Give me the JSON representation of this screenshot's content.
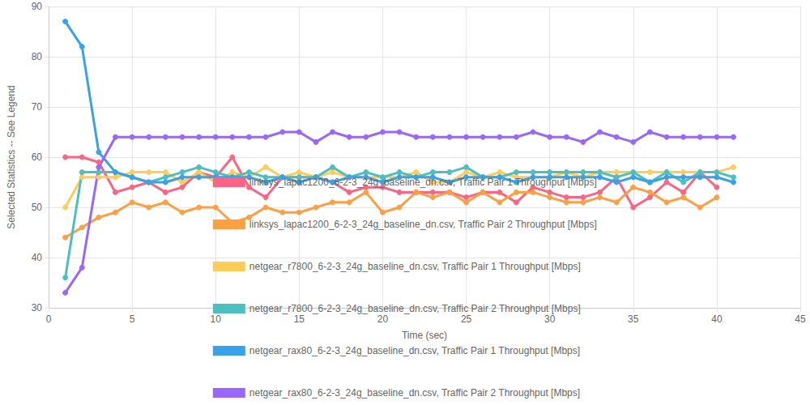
{
  "chart_data": {
    "type": "line",
    "x_label": "Time (sec)",
    "y_label": "Selected Statistics -- See Legend",
    "x": [
      1,
      2,
      3,
      4,
      5,
      6,
      7,
      8,
      9,
      10,
      11,
      12,
      13,
      14,
      15,
      16,
      17,
      18,
      19,
      20,
      21,
      22,
      23,
      24,
      25,
      26,
      27,
      28,
      29,
      30,
      31,
      32,
      33,
      34,
      35,
      36,
      37,
      38,
      39,
      40,
      41
    ],
    "xlim": [
      0,
      45
    ],
    "xticks": [
      0,
      5,
      10,
      15,
      20,
      25,
      30,
      35,
      40,
      45
    ],
    "ylim": [
      30,
      90
    ],
    "yticks": [
      30,
      40,
      50,
      60,
      70,
      80,
      90
    ],
    "grid": true,
    "legend": "bottom",
    "marker": "circle",
    "series": [
      {
        "name": "linksys_lapac1200_6-2-3_24g_baseline_dn.csv, Traffic Pair 1 Throughput [Mbps]",
        "color": "#ff6384",
        "values": [
          60,
          60,
          59,
          53,
          54,
          55,
          53,
          54,
          57,
          56,
          60,
          54,
          52,
          56,
          56,
          56,
          55,
          53,
          54,
          54,
          53,
          53,
          53,
          53,
          52,
          53,
          53,
          51,
          54,
          53,
          52,
          52,
          53,
          56,
          50,
          52,
          55,
          53,
          57,
          54,
          null
        ]
      },
      {
        "name": "linksys_lapac1200_6-2-3_24g_baseline_dn.csv, Traffic Pair 2 Throughput [Mbps]",
        "color": "#ff9f40",
        "values": [
          44,
          46,
          48,
          49,
          51,
          50,
          51,
          49,
          50,
          50,
          47,
          48,
          50,
          49,
          49,
          50,
          51,
          51,
          53,
          49,
          50,
          53,
          52,
          53,
          51,
          53,
          51,
          53,
          53,
          52,
          51,
          51,
          52,
          51,
          54,
          53,
          51,
          52,
          50,
          52,
          null
        ]
      },
      {
        "name": "netgear_r7800_6-2-3_24g_baseline_dn.csv, Traffic Pair 1 Throughput [Mbps]",
        "color": "#ffcd56",
        "values": [
          50,
          56,
          56,
          56,
          57,
          57,
          57,
          55,
          57,
          55,
          57,
          56,
          58,
          56,
          57,
          56,
          57,
          56,
          56,
          56,
          56,
          57,
          55,
          55,
          57,
          56,
          57,
          56,
          56,
          56,
          57,
          56,
          57,
          57,
          57,
          57,
          57,
          57,
          57,
          57,
          58
        ]
      },
      {
        "name": "netgear_r7800_6-2-3_24g_baseline_dn.csv, Traffic Pair 2 Throughput [Mbps]",
        "color": "#4bc0c0",
        "values": [
          36,
          57,
          57,
          57,
          56,
          55,
          56,
          57,
          58,
          57,
          56,
          57,
          56,
          56,
          56,
          56,
          58,
          56,
          57,
          56,
          57,
          56,
          57,
          57,
          58,
          56,
          56,
          57,
          57,
          57,
          57,
          57,
          57,
          56,
          57,
          55,
          57,
          55,
          57,
          57,
          56
        ]
      },
      {
        "name": "netgear_rax80_6-2-3_24g_baseline_dn.csv, Traffic Pair 1 Throughput [Mbps]",
        "color": "#36a2eb",
        "values": [
          87,
          82,
          61,
          57,
          56,
          55,
          55,
          56,
          56,
          56,
          56,
          56,
          55,
          56,
          55,
          56,
          55,
          56,
          56,
          55,
          56,
          56,
          56,
          55,
          56,
          56,
          56,
          55,
          56,
          56,
          56,
          56,
          56,
          55,
          56,
          55,
          56,
          56,
          56,
          56,
          55
        ]
      },
      {
        "name": "netgear_rax80_6-2-3_24g_baseline_dn.csv, Traffic Pair 2 Throughput [Mbps]",
        "color": "#9966ff",
        "values": [
          33,
          38,
          58,
          64,
          64,
          64,
          64,
          64,
          64,
          64,
          64,
          64,
          64,
          65,
          65,
          63,
          65,
          64,
          64,
          65,
          65,
          64,
          64,
          64,
          64,
          64,
          64,
          64,
          65,
          64,
          64,
          63,
          65,
          64,
          63,
          65,
          64,
          64,
          64,
          64,
          64
        ]
      }
    ]
  }
}
